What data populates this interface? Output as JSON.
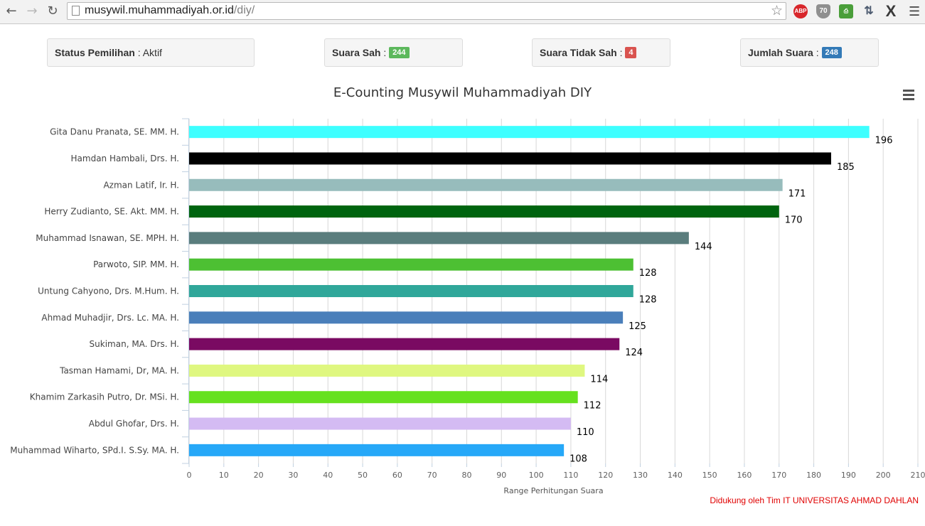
{
  "browser": {
    "url_host": "musywil.muhammadiyah.or.id",
    "url_path": "/diy/",
    "extensions": [
      "ABP",
      "70"
    ]
  },
  "stats": {
    "status_label": "Status Pemilihan",
    "status_value": "Aktif",
    "sah_label": "Suara Sah",
    "sah_value": "244",
    "tidak_sah_label": "Suara Tidak Sah",
    "tidak_sah_value": "4",
    "jumlah_label": "Jumlah Suara",
    "jumlah_value": "248",
    "separator": ":"
  },
  "colors": {
    "badge_sah": "#5cb85c",
    "badge_tidak_sah": "#d9534f",
    "badge_jumlah": "#337ab7",
    "credit": "#e00000"
  },
  "chart_data": {
    "type": "bar",
    "orientation": "horizontal",
    "title": "E-Counting Musywil Muhammadiyah DIY",
    "xlabel": "Range Perhitungan Suara",
    "ylabel": "",
    "xlim": [
      0,
      210
    ],
    "x_ticks": [
      0,
      10,
      20,
      30,
      40,
      50,
      60,
      70,
      80,
      90,
      100,
      110,
      120,
      130,
      140,
      150,
      160,
      170,
      180,
      190,
      200,
      210
    ],
    "grid": true,
    "legend": "none",
    "categories": [
      "Gita Danu Pranata, SE. MM. H.",
      "Hamdan Hambali, Drs. H.",
      "Azman Latif, Ir. H.",
      "Herry Zudianto, SE. Akt. MM. H.",
      "Muhammad Isnawan, SE. MPH. H.",
      "Parwoto, SIP. MM. H.",
      "Untung Cahyono, Drs. M.Hum. H.",
      "Ahmad Muhadjir, Drs. Lc. MA. H.",
      "Sukiman, MA. Drs. H.",
      "Tasman Hamami, Dr, MA. H.",
      "Khamim Zarkasih Putro, Dr. MSi. H.",
      "Abdul Ghofar, Drs. H.",
      "Muhammad Wiharto, SPd.I. S.Sy. MA. H."
    ],
    "values": [
      196,
      185,
      171,
      170,
      144,
      128,
      128,
      125,
      124,
      114,
      112,
      110,
      108
    ],
    "bar_colors": [
      "#3effff",
      "#000000",
      "#97bcbc",
      "#00640f",
      "#5a7d7d",
      "#4dc033",
      "#30a79a",
      "#4a7fba",
      "#7a0a62",
      "#dff780",
      "#66e11f",
      "#d4bbf3",
      "#26a8f8"
    ]
  },
  "footer": {
    "credit": "Didukung oleh Tim IT UNIVERSITAS AHMAD DAHLAN"
  }
}
